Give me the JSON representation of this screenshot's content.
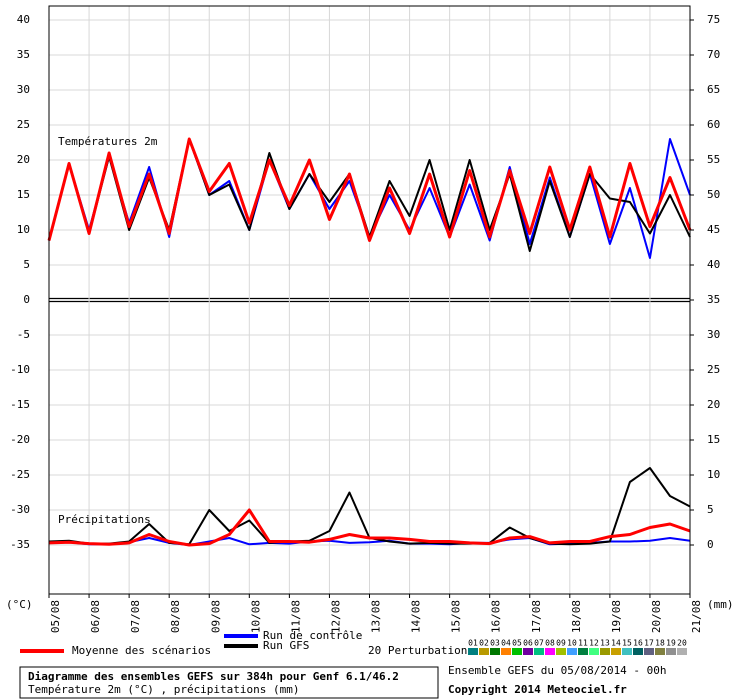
{
  "chart_data": {
    "type": "line",
    "temperature_label": "Températures 2m",
    "precipitation_label": "Précipitations",
    "ylabel": "(°C)",
    "y2label": "(mm)",
    "x": [
      0,
      12,
      24,
      36,
      48,
      60,
      72,
      84,
      96,
      108,
      120,
      132,
      144,
      156,
      168,
      180,
      192,
      204,
      216,
      228,
      240,
      252,
      264,
      276,
      288,
      300,
      312,
      324,
      336,
      348,
      360,
      372,
      384
    ],
    "xlim": [
      0,
      384
    ],
    "xticks": [
      {
        "value": 0,
        "label": "05/08"
      },
      {
        "value": 24,
        "label": "06/08"
      },
      {
        "value": 48,
        "label": "07/08"
      },
      {
        "value": 72,
        "label": "08/08"
      },
      {
        "value": 96,
        "label": "09/08"
      },
      {
        "value": 120,
        "label": "10/08"
      },
      {
        "value": 144,
        "label": "11/08"
      },
      {
        "value": 168,
        "label": "12/08"
      },
      {
        "value": 192,
        "label": "13/08"
      },
      {
        "value": 216,
        "label": "14/08"
      },
      {
        "value": 240,
        "label": "15/08"
      },
      {
        "value": 264,
        "label": "16/08"
      },
      {
        "value": 288,
        "label": "17/08"
      },
      {
        "value": 312,
        "label": "18/08"
      },
      {
        "value": 336,
        "label": "19/08"
      },
      {
        "value": 360,
        "label": "20/08"
      },
      {
        "value": 384,
        "label": "21/08"
      }
    ],
    "ylim": [
      -42,
      42
    ],
    "yticks": [
      40,
      35,
      30,
      25,
      20,
      15,
      10,
      5,
      0,
      -5,
      -10,
      -15,
      -20,
      -25,
      -30,
      -35
    ],
    "y2lim": [
      -7,
      77
    ],
    "y2ticks": [
      75,
      70,
      65,
      60,
      55,
      50,
      45,
      40,
      35,
      30,
      25,
      20,
      15,
      10,
      5,
      0
    ],
    "grid": true,
    "series": [
      {
        "name": "Run de contrôle",
        "color": "#0000ff",
        "values": [
          8.5,
          19.5,
          10,
          20.5,
          11,
          19,
          9,
          23,
          15,
          17,
          10,
          20,
          13,
          18,
          13,
          17,
          9,
          15,
          10,
          16,
          9,
          16.5,
          8.5,
          19,
          8,
          17.5,
          9,
          18,
          8,
          16,
          6,
          23,
          15
        ],
        "precipitation": [
          0.3,
          0.4,
          0.1,
          0.1,
          0.4,
          1,
          0.3,
          0,
          0.5,
          1,
          0.1,
          0.3,
          0.2,
          0.5,
          0.6,
          0.3,
          0.4,
          0.6,
          0.2,
          0.2,
          0.1,
          0.3,
          0.3,
          0.8,
          1,
          0.1,
          0.2,
          0.3,
          0.5,
          0.5,
          0.6,
          1,
          0.6
        ]
      },
      {
        "name": "Run GFS",
        "color": "#000000",
        "values": [
          8.5,
          19.5,
          9.5,
          20.5,
          10,
          17.5,
          10,
          23,
          15,
          16.5,
          10,
          21,
          13,
          18,
          14,
          18,
          9,
          17,
          12,
          20,
          10,
          20,
          10,
          18,
          7,
          17,
          9,
          18,
          14.5,
          14,
          9.5,
          15,
          9
        ],
        "precipitation": [
          0.5,
          0.6,
          0.2,
          0.2,
          0.5,
          3,
          0.3,
          0.1,
          5,
          2,
          3.5,
          0.3,
          0.5,
          0.6,
          2,
          7.5,
          1,
          0.5,
          0.2,
          0.3,
          0.2,
          0.2,
          0.3,
          2.5,
          1,
          0.2,
          0.1,
          0.2,
          0.5,
          9,
          11,
          7,
          5.5
        ]
      },
      {
        "name": "Moyenne des scénarios",
        "color": "#ff0000",
        "values": [
          8.5,
          19.5,
          9.5,
          21,
          10.5,
          18,
          9.5,
          23,
          15.5,
          19.5,
          11,
          20,
          13.5,
          20,
          11.5,
          18,
          8.5,
          16,
          9.5,
          18,
          9,
          18.5,
          9,
          18.5,
          9.5,
          19,
          10,
          19,
          9,
          19.5,
          10.5,
          17.5,
          10
        ],
        "precipitation": [
          0.3,
          0.4,
          0.2,
          0.1,
          0.3,
          1.5,
          0.5,
          0,
          0.2,
          1.5,
          5,
          0.5,
          0.5,
          0.4,
          0.8,
          1.5,
          1,
          1,
          0.8,
          0.5,
          0.5,
          0.3,
          0.2,
          1,
          1.2,
          0.3,
          0.5,
          0.5,
          1.2,
          1.5,
          2.5,
          3,
          2
        ]
      }
    ],
    "perturbations": {
      "label": "20 Perturbations",
      "members": [
        {
          "name": "01",
          "color": "#008080"
        },
        {
          "name": "02",
          "color": "#b89a00"
        },
        {
          "name": "03",
          "color": "#007800"
        },
        {
          "name": "04",
          "color": "#ff8000"
        },
        {
          "name": "05",
          "color": "#00c000"
        },
        {
          "name": "06",
          "color": "#7000a0"
        },
        {
          "name": "07",
          "color": "#00c080"
        },
        {
          "name": "08",
          "color": "#ff00ff"
        },
        {
          "name": "09",
          "color": "#a0c000"
        },
        {
          "name": "10",
          "color": "#40a0ff"
        },
        {
          "name": "11",
          "color": "#008040"
        },
        {
          "name": "12",
          "color": "#40ff80"
        },
        {
          "name": "13",
          "color": "#9a9a00"
        },
        {
          "name": "14",
          "color": "#c8a000"
        },
        {
          "name": "15",
          "color": "#40c0c0"
        },
        {
          "name": "16",
          "color": "#006060"
        },
        {
          "name": "17",
          "color": "#606080"
        },
        {
          "name": "18",
          "color": "#808040"
        },
        {
          "name": "19",
          "color": "#909090"
        },
        {
          "name": "20",
          "color": "#b0b0b0"
        }
      ]
    },
    "footer_title": "Diagramme des ensembles GEFS sur 384h pour Genf 6.1/46.2",
    "footer_subtitle": "Température 2m (°C) , précipitations (mm)",
    "run_info": "Ensemble GEFS du 05/08/2014 - 00h",
    "copyright": "Copyright 2014 Meteociel.fr"
  }
}
